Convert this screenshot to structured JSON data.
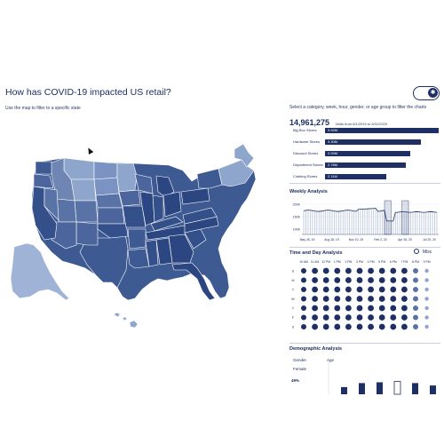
{
  "header": {
    "title": "How has COVID-19 impacted US retail?",
    "subtitle": "Use the map to filter to a specific state",
    "toggle_icon": "✱"
  },
  "colors": {
    "dark": "#1d2f63",
    "mid": "#3e5a93",
    "light": "#8fa6cc",
    "alaska": "#9fb3d6",
    "pale": "#c9d3e6"
  },
  "right": {
    "instructions": "Select a category, week, hour, gender, or age group to filter the charts",
    "total_value": "14,961,275",
    "total_caption": "Visits from 6/1/2019 to 6/31/2020",
    "categories": [
      {
        "label": "Big Box Stores",
        "value": "3.92M",
        "share": 1.0
      },
      {
        "label": "Hardware Stores",
        "value": "3.30M",
        "share": 0.84
      },
      {
        "label": "Discount Stores",
        "value": "2.93M",
        "share": 0.75
      },
      {
        "label": "Department Stores",
        "value": "2.78M",
        "share": 0.71
      },
      {
        "label": "Clothing Stores",
        "value": "2.11M",
        "share": 0.54
      }
    ]
  },
  "weekly": {
    "title": "Weekly Analysis",
    "y_ticks": [
      "200K",
      "150K",
      "100K"
    ],
    "x_ticks": [
      "May 26, 19",
      "Aug 18, 19",
      "Nov 10, 19",
      "Feb 2, 20",
      "Apr 26, 20",
      "Jul 19, 20"
    ]
  },
  "timeday": {
    "title": "Time and Day Analysis",
    "misc_label": "Misc",
    "hours": [
      "10 AM",
      "11 AM",
      "12 PM",
      "1 PM",
      "2 PM",
      "3 PM",
      "4 PM",
      "5 PM",
      "6 PM",
      "7 PM",
      "8 PM",
      "9 PM"
    ],
    "days": [
      "S",
      "M",
      "T",
      "W",
      "T",
      "F",
      "S"
    ]
  },
  "demographic": {
    "title": "Demographic Analysis",
    "gender_label": "Gender",
    "age_label": "Age",
    "female_label": "Female",
    "female_pct": "49%"
  }
}
